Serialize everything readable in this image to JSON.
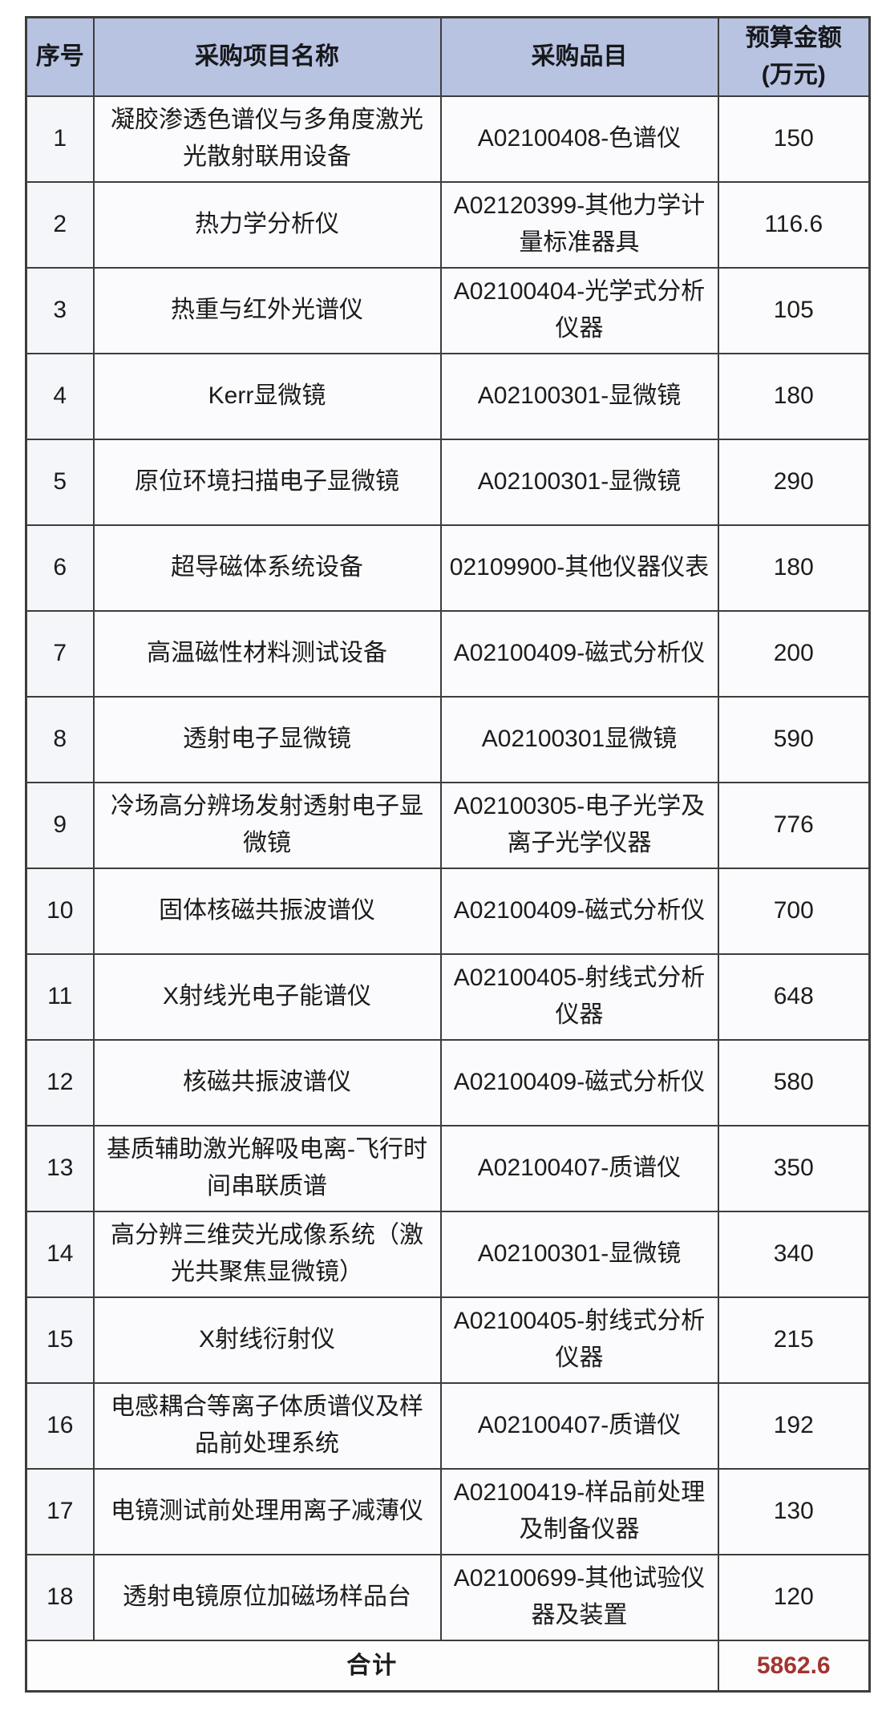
{
  "table": {
    "headers": {
      "seq": "序号",
      "name": "采购项目名称",
      "item": "采购品目",
      "amount": "预算金额\n(万元)"
    },
    "rows": [
      {
        "seq": "1",
        "name": "凝胶渗透色谱仪与多角度激光\n光散射联用设备",
        "item": "A02100408-色谱仪",
        "amount": "150"
      },
      {
        "seq": "2",
        "name": "热力学分析仪",
        "item": "A02120399-其他力学计\n量标准器具",
        "amount": "116.6"
      },
      {
        "seq": "3",
        "name": "热重与红外光谱仪",
        "item": "A02100404-光学式分析\n仪器",
        "amount": "105"
      },
      {
        "seq": "4",
        "name": "Kerr显微镜",
        "item": "A02100301-显微镜",
        "amount": "180"
      },
      {
        "seq": "5",
        "name": "原位环境扫描电子显微镜",
        "item": "A02100301-显微镜",
        "amount": "290"
      },
      {
        "seq": "6",
        "name": "超导磁体系统设备",
        "item": "02109900-其他仪器仪表",
        "amount": "180"
      },
      {
        "seq": "7",
        "name": "高温磁性材料测试设备",
        "item": "A02100409-磁式分析仪",
        "amount": "200"
      },
      {
        "seq": "8",
        "name": "透射电子显微镜",
        "item": "A02100301显微镜",
        "amount": "590"
      },
      {
        "seq": "9",
        "name": "冷场高分辨场发射透射电子显\n微镜",
        "item": "A02100305-电子光学及\n离子光学仪器",
        "amount": "776"
      },
      {
        "seq": "10",
        "name": "固体核磁共振波谱仪",
        "item": "A02100409-磁式分析仪",
        "amount": "700"
      },
      {
        "seq": "11",
        "name": "X射线光电子能谱仪",
        "item": "A02100405-射线式分析\n仪器",
        "amount": "648"
      },
      {
        "seq": "12",
        "name": "核磁共振波谱仪",
        "item": "A02100409-磁式分析仪",
        "amount": "580"
      },
      {
        "seq": "13",
        "name": "基质辅助激光解吸电离-飞行时\n间串联质谱",
        "item": "A02100407-质谱仪",
        "amount": "350"
      },
      {
        "seq": "14",
        "name": "高分辨三维荧光成像系统（激\n光共聚焦显微镜）",
        "item": "A02100301-显微镜",
        "amount": "340"
      },
      {
        "seq": "15",
        "name": "X射线衍射仪",
        "item": "A02100405-射线式分析\n仪器",
        "amount": "215"
      },
      {
        "seq": "16",
        "name": "电感耦合等离子体质谱仪及样\n品前处理系统",
        "item": "A02100407-质谱仪",
        "amount": "192"
      },
      {
        "seq": "17",
        "name": "电镜测试前处理用离子减薄仪",
        "item": "A02100419-样品前处理\n及制备仪器",
        "amount": "130"
      },
      {
        "seq": "18",
        "name": "透射电镜原位加磁场样品台",
        "item": "A02100699-其他试验仪\n器及装置",
        "amount": "120"
      }
    ],
    "footer": {
      "label": "合计",
      "total": "5862.6"
    }
  },
  "colors": {
    "header_bg": "#b7c3e0",
    "border": "#3d3d3d",
    "total_value_red": "#a23430"
  }
}
